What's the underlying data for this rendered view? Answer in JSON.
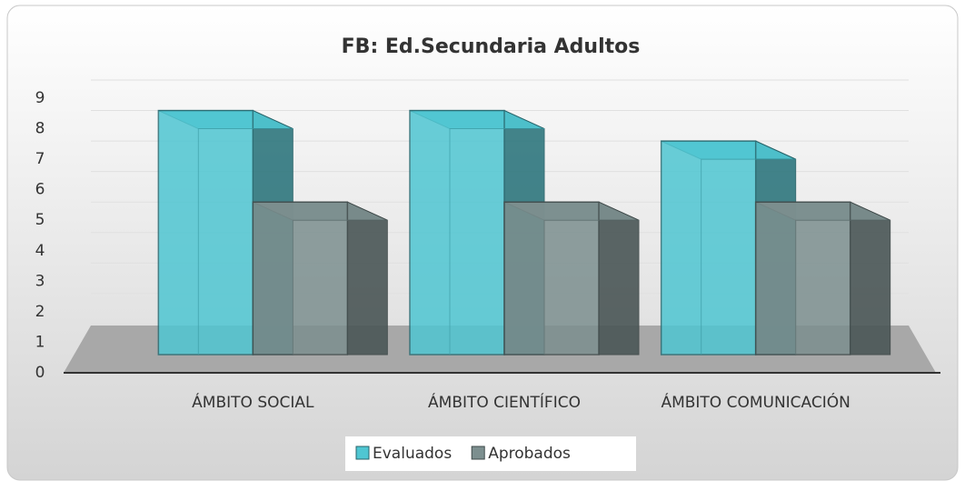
{
  "chart_data": {
    "type": "bar3d",
    "title": "FB: Ed.Secundaria Adultos",
    "categories": [
      "ÁMBITO SOCIAL",
      "ÁMBITO CIENTÍFICO",
      "ÁMBITO COMUNICACIÓN"
    ],
    "series": [
      {
        "name": "Evaluados",
        "color": "#4fc6d2",
        "values": [
          8,
          8,
          7
        ]
      },
      {
        "name": "Aprobados",
        "color": "#7c8f8f",
        "values": [
          5,
          5,
          5
        ]
      }
    ],
    "ylim": [
      0,
      9
    ],
    "yticks": [
      0,
      1,
      2,
      3,
      4,
      5,
      6,
      7,
      8,
      9
    ],
    "grid": true,
    "legend": "bottom"
  }
}
